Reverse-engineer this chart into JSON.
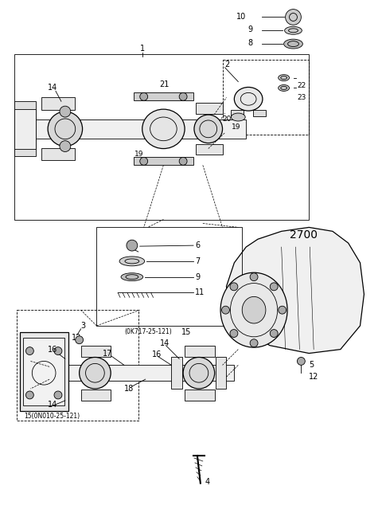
{
  "bg_color": "#ffffff",
  "line_color": "#000000",
  "fig_width": 4.8,
  "fig_height": 6.39,
  "dpi": 100
}
